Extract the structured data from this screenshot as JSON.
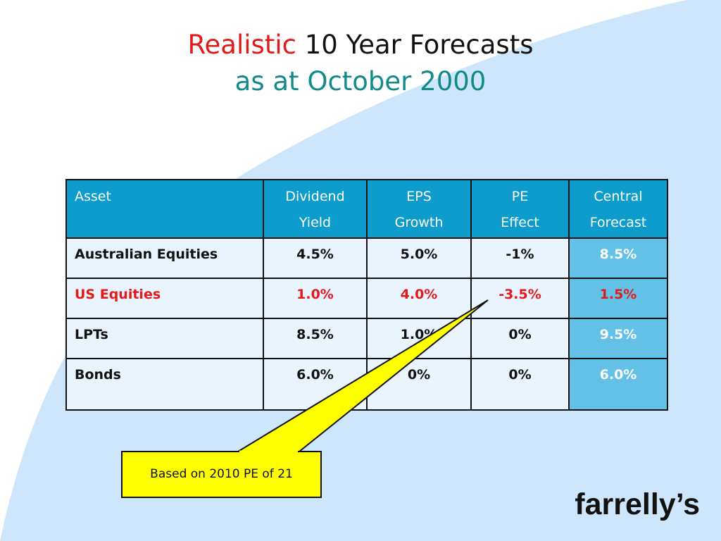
{
  "title": {
    "highlight": "Realistic",
    "rest": " 10 Year Forecasts",
    "subtitle": "as at October 2000"
  },
  "table": {
    "headers": [
      [
        "Asset"
      ],
      [
        "Dividend",
        "Yield"
      ],
      [
        "EPS",
        "Growth"
      ],
      [
        "PE",
        "Effect"
      ],
      [
        "Central",
        "Forecast"
      ]
    ],
    "rows": [
      {
        "asset": "Australian  Equities",
        "dividend_yield": "4.5%",
        "eps_growth": "5.0%",
        "pe_effect": "-1%",
        "central_forecast": "8.5%"
      },
      {
        "asset": "US  Equities",
        "dividend_yield": "1.0%",
        "eps_growth": "4.0%",
        "pe_effect": "-3.5%",
        "central_forecast": "1.5%"
      },
      {
        "asset": "LPTs",
        "dividend_yield": "8.5%",
        "eps_growth": "1.0%",
        "pe_effect": "0%",
        "central_forecast": "9.5%"
      },
      {
        "asset": "Bonds",
        "dividend_yield": "6.0%",
        "eps_growth": "0%",
        "pe_effect": "0%",
        "central_forecast": "6.0%"
      }
    ]
  },
  "callout": {
    "text": "Based on 2010 PE of 21"
  },
  "logo": "farrelly’s",
  "colors": {
    "header_bg": "#0e9ccc",
    "cell_bg": "#eaf4fe",
    "central_bg": "#63c0e6",
    "highlight_red": "#e21a1a",
    "subtitle_teal": "#138a8a",
    "callout_fill": "#ffff00",
    "background_arc": "#cde6fb"
  }
}
